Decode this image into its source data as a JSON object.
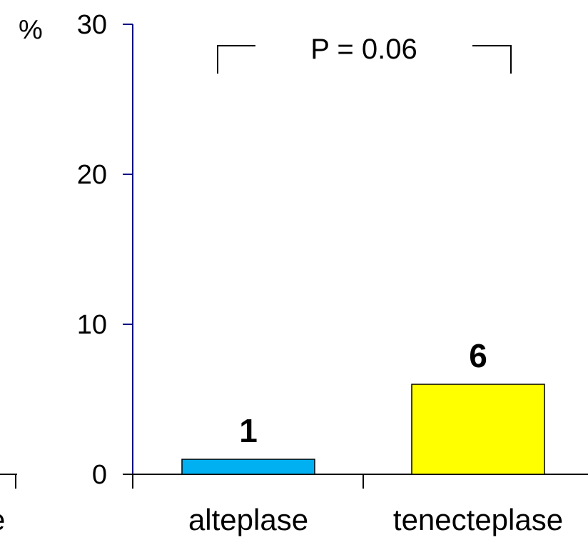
{
  "chart_data": {
    "type": "bar",
    "title": "",
    "xlabel": "",
    "ylabel": "%",
    "ylim": [
      0,
      30
    ],
    "yticks": [
      0,
      10,
      20,
      30
    ],
    "grid": false,
    "categories": [
      "alteplase",
      "tenecteplase"
    ],
    "values": [
      1,
      6
    ],
    "data_labels": [
      "1",
      "6"
    ],
    "clipped_left_category_fragment": "e",
    "annotation": "P = 0.06",
    "colors": {
      "alteplase": "#00b0f0",
      "tenecteplase": "#ffff00",
      "y_axis": "#000080",
      "x_axis": "#000000"
    }
  }
}
